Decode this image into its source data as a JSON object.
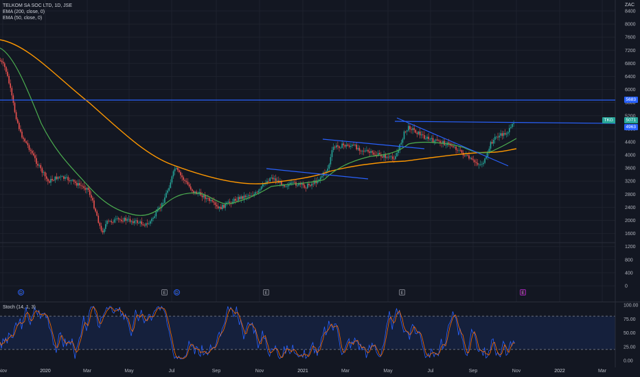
{
  "main": {
    "legend": {
      "symbol": "TELKOM SA SOC LTD, 1D, JSE",
      "ema200": "EMA (200, close, 0)",
      "ema50": "EMA (50, close, 0)"
    },
    "currency": "ZAC",
    "price_ticks": [
      "8400",
      "8000",
      "7600",
      "7200",
      "6800",
      "6400",
      "6000",
      "5600",
      "5200",
      "4800",
      "4400",
      "4000",
      "3600",
      "3200",
      "2800",
      "2400",
      "2000",
      "1600",
      "1200",
      "800",
      "400",
      "0"
    ],
    "tags": {
      "line_level": "5683",
      "symbol_name": "TKG",
      "last_price": "5071",
      "support_level": "4963"
    },
    "events": [
      {
        "kind": "dividend",
        "label": "D"
      },
      {
        "kind": "earnings",
        "label": "E"
      },
      {
        "kind": "dividend",
        "label": "D"
      },
      {
        "kind": "earnings",
        "label": "E"
      },
      {
        "kind": "earnings",
        "label": "E"
      },
      {
        "kind": "earnings-upcoming",
        "label": "E"
      }
    ],
    "colors": {
      "up": "#26a69a",
      "down": "#ef5350",
      "ema200": "#ff9800",
      "ema50": "#4caf50",
      "trendline": "#2962ff",
      "last_price_tag": "#26a69a",
      "level_tag": "#2962ff"
    }
  },
  "oscillator": {
    "legend": "Stoch (14, 1, 3)",
    "ticks": [
      "100.00",
      "75.00",
      "50.00",
      "25.00",
      "0.00"
    ],
    "colors": {
      "k": "#2962ff",
      "d": "#ff6d00",
      "band": "#2962ff"
    }
  },
  "time_axis": [
    "Nov",
    "2020",
    "Mar",
    "May",
    "Jul",
    "Sep",
    "Nov",
    "2021",
    "Mar",
    "May",
    "Jul",
    "Sep",
    "Nov",
    "2022",
    "Mar"
  ]
}
